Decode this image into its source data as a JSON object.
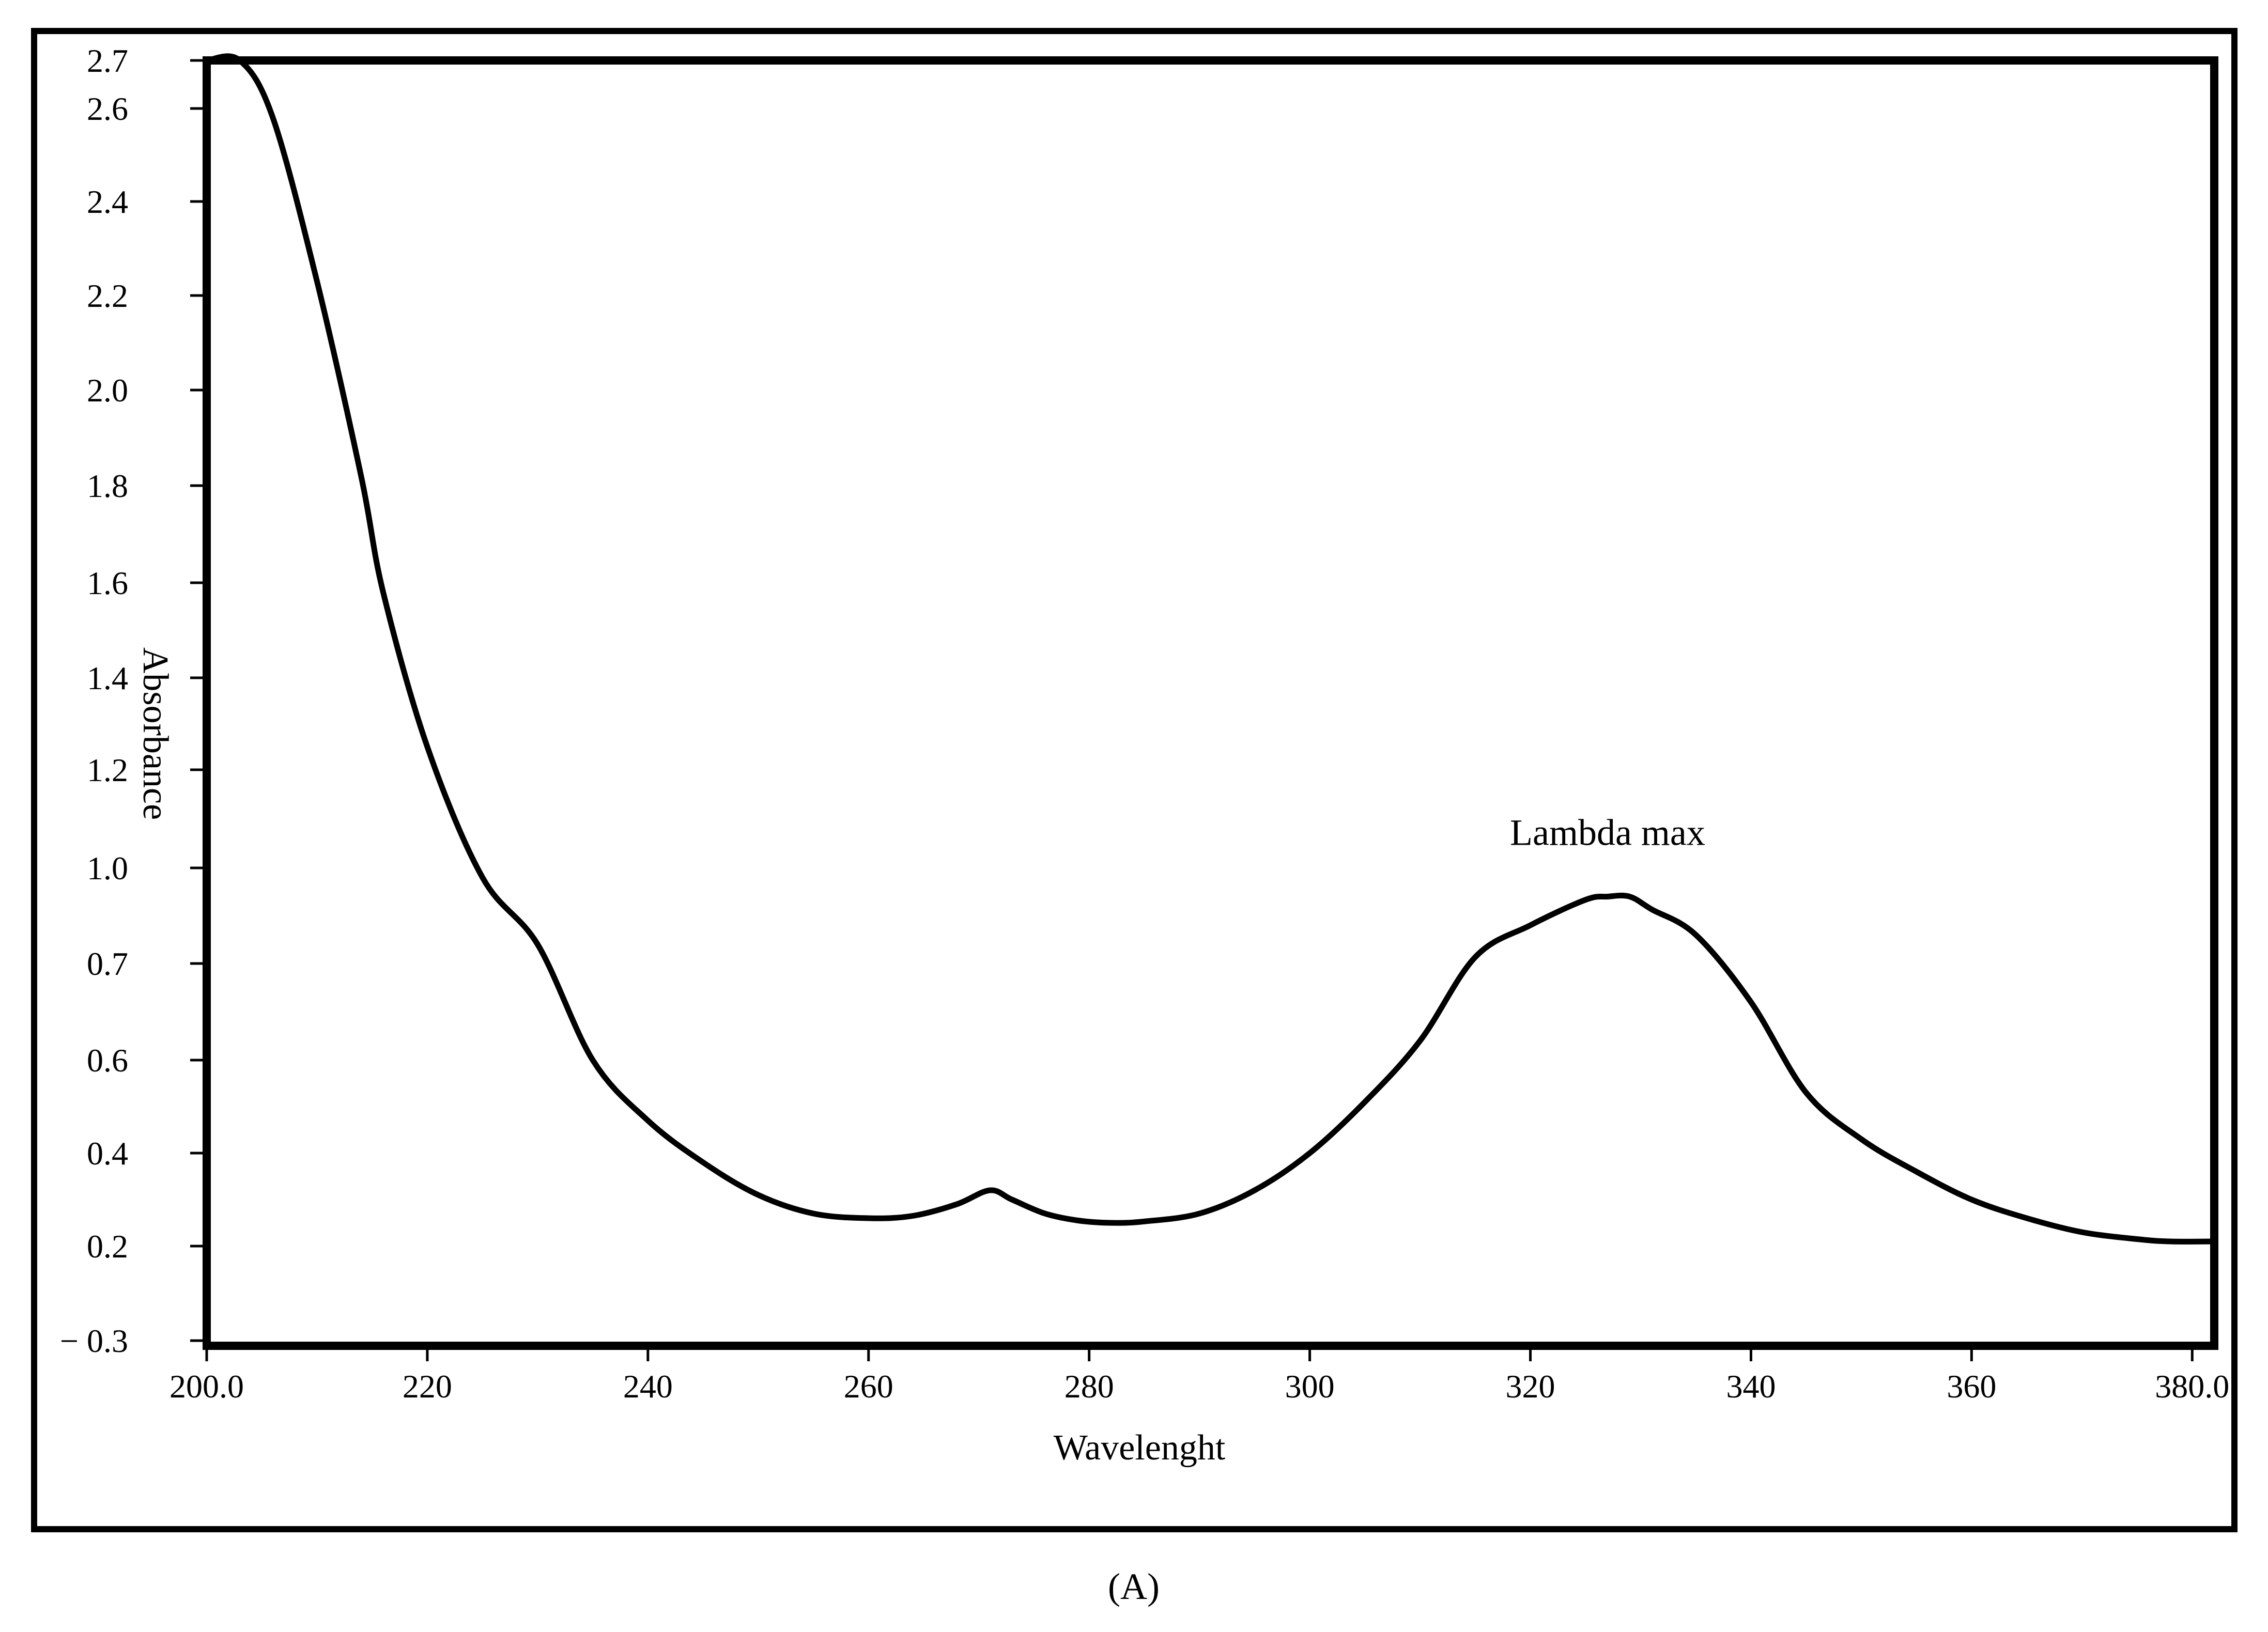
{
  "chart_data": {
    "type": "line",
    "xlabel": "Wavelenght",
    "ylabel": "Absorbance",
    "xlim": [
      200,
      382
    ],
    "x_ticks": [
      {
        "value": 200,
        "label": "200.0"
      },
      {
        "value": 220,
        "label": "220"
      },
      {
        "value": 240,
        "label": "240"
      },
      {
        "value": 260,
        "label": "260"
      },
      {
        "value": 280,
        "label": "280"
      },
      {
        "value": 300,
        "label": "300"
      },
      {
        "value": 320,
        "label": "320"
      },
      {
        "value": 340,
        "label": "340"
      },
      {
        "value": 360,
        "label": "360"
      },
      {
        "value": 380,
        "label": "380.0"
      }
    ],
    "y_ticks": [
      {
        "value": -0.3,
        "label": "− 0.3"
      },
      {
        "value": 0.2,
        "label": "0.2"
      },
      {
        "value": 0.4,
        "label": "0.4"
      },
      {
        "value": 0.6,
        "label": "0.6"
      },
      {
        "value": 0.7,
        "label": "0.7"
      },
      {
        "value": 1.0,
        "label": "1.0"
      },
      {
        "value": 1.2,
        "label": "1.2"
      },
      {
        "value": 1.4,
        "label": "1.4"
      },
      {
        "value": 1.6,
        "label": "1.6"
      },
      {
        "value": 1.8,
        "label": "1.8"
      },
      {
        "value": 2.0,
        "label": "2.0"
      },
      {
        "value": 2.2,
        "label": "2.2"
      },
      {
        "value": 2.4,
        "label": "2.4"
      },
      {
        "value": 2.6,
        "label": "2.6"
      },
      {
        "value": 2.7,
        "label": "2.7"
      }
    ],
    "series": [
      {
        "x": [
          200,
          203,
          206,
          210,
          214,
          216,
          220,
          225,
          230,
          235,
          240,
          245,
          250,
          255,
          260,
          264,
          268,
          271,
          273,
          276,
          279,
          282,
          285,
          290,
          295,
          300,
          305,
          310,
          315,
          320,
          325,
          327,
          329,
          331,
          335,
          340,
          345,
          350,
          355,
          360,
          365,
          370,
          375,
          378,
          382
        ],
        "y": [
          2.7,
          2.7,
          2.58,
          2.23,
          1.82,
          1.58,
          1.25,
          0.97,
          0.76,
          0.6,
          0.47,
          0.38,
          0.31,
          0.27,
          0.26,
          0.265,
          0.29,
          0.32,
          0.3,
          0.27,
          0.255,
          0.25,
          0.253,
          0.27,
          0.32,
          0.4,
          0.51,
          0.62,
          0.72,
          0.82,
          0.9,
          0.91,
          0.91,
          0.87,
          0.79,
          0.66,
          0.53,
          0.43,
          0.36,
          0.3,
          0.26,
          0.23,
          0.215,
          0.21,
          0.21
        ]
      }
    ],
    "annotations": [
      {
        "text": "Lambda max",
        "x": 327,
        "y": 0.91
      }
    ],
    "caption": "(A)",
    "grid": false,
    "legend": "none"
  }
}
